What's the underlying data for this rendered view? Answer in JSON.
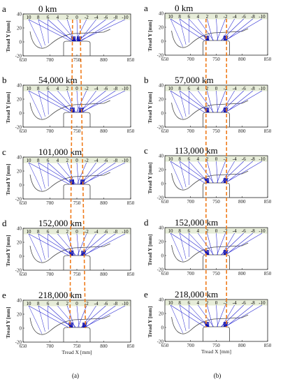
{
  "chart_data": [
    {
      "type": "line",
      "column": "a",
      "xlabel": "Tread X [mm]",
      "ylabel": "Tread Y [mm]",
      "xlim": [
        650,
        850
      ],
      "ylim": [
        -20,
        40
      ],
      "xticks": [
        "650",
        "700",
        "750",
        "800",
        "850"
      ],
      "yticks": [
        "-20",
        "0",
        "20",
        "40"
      ],
      "band_labels": [
        "10",
        "8",
        "6",
        "4",
        "2",
        "0",
        "-2",
        "-4",
        "-6",
        "-8",
        "-10"
      ],
      "panels": [
        {
          "letter": "a",
          "title": "0 km",
          "left_flank": 742,
          "right_flank": 756
        },
        {
          "letter": "b",
          "title": "54,000 km",
          "left_flank": 740,
          "right_flank": 760
        },
        {
          "letter": "c",
          "title": "101,000 km",
          "left_flank": 739,
          "right_flank": 762
        },
        {
          "letter": "d",
          "title": "152,000 km",
          "left_flank": 738,
          "right_flank": 764
        },
        {
          "letter": "e",
          "title": "218,000 km",
          "left_flank": 737,
          "right_flank": 766
        }
      ],
      "caption": "(a)"
    },
    {
      "type": "line",
      "column": "b",
      "xlabel": "Tread X [mm]",
      "ylabel": "Tread Y [mm]",
      "xlim": [
        650,
        850
      ],
      "ylim": [
        -20,
        40
      ],
      "xticks": [
        "650",
        "700",
        "750",
        "800",
        "850"
      ],
      "yticks": [
        "-20",
        "0",
        "20",
        "40"
      ],
      "band_labels": [
        "10",
        "8",
        "6",
        "4",
        "2",
        "0",
        "-2",
        "-4",
        "-6",
        "-8",
        "-10"
      ],
      "panels": [
        {
          "letter": "a",
          "title": "0 km",
          "left_flank": 730,
          "right_flank": 770
        },
        {
          "letter": "b",
          "title": "57,000 km",
          "left_flank": 730,
          "right_flank": 770
        },
        {
          "letter": "c",
          "title": "113,000 km",
          "left_flank": 730,
          "right_flank": 770
        },
        {
          "letter": "d",
          "title": "152,000 km",
          "left_flank": 730,
          "right_flank": 770
        },
        {
          "letter": "e",
          "title": "218,000 km",
          "left_flank": 730,
          "right_flank": 770
        }
      ],
      "caption": "(b)"
    }
  ],
  "colors": {
    "ray": "#1f1fd0",
    "contact": "#0000a8",
    "profile": "#444444",
    "trend": "#f07c1c",
    "band": "#e6ecd8"
  }
}
